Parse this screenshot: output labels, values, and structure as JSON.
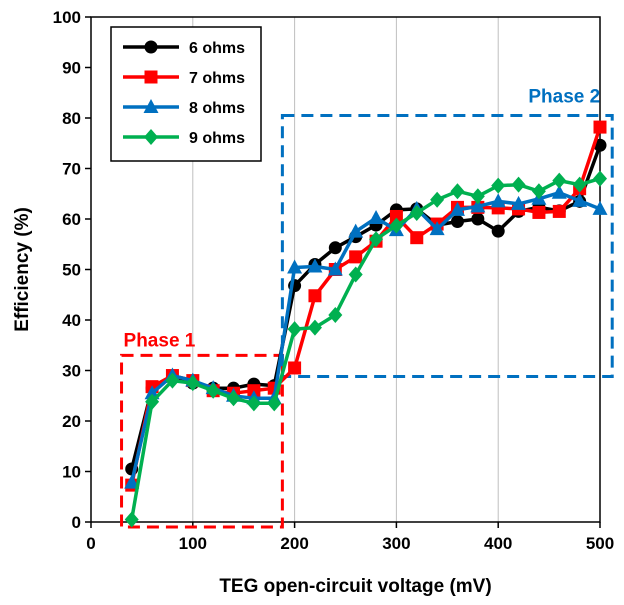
{
  "chart_data": {
    "type": "line",
    "xlabel": "TEG open-circuit voltage (mV)",
    "ylabel": "Efficiency (%)",
    "xlim": [
      0,
      500
    ],
    "ylim": [
      0,
      100
    ],
    "xticks": [
      0,
      100,
      200,
      300,
      400,
      500
    ],
    "yticks": [
      0,
      10,
      20,
      30,
      40,
      50,
      60,
      70,
      80,
      90,
      100
    ],
    "grid": "vertical",
    "legend_position": "top-left",
    "series": [
      {
        "name": "6 ohms",
        "color": "#000000",
        "marker": "circle",
        "x": [
          40,
          60,
          80,
          100,
          120,
          140,
          160,
          180,
          200,
          220,
          240,
          260,
          280,
          300,
          320,
          340,
          360,
          380,
          400,
          420,
          440,
          460,
          480,
          500
        ],
        "y": [
          10.5,
          26.5,
          28.5,
          27.5,
          26.5,
          26.5,
          27.3,
          27.0,
          46.8,
          51.0,
          54.3,
          56.5,
          58.8,
          61.8,
          62.0,
          58.8,
          59.5,
          60.0,
          57.6,
          61.5,
          62.3,
          61.6,
          63.5,
          74.6
        ]
      },
      {
        "name": "7 ohms",
        "color": "#ff0000",
        "marker": "square",
        "x": [
          40,
          60,
          80,
          100,
          120,
          140,
          160,
          180,
          200,
          220,
          240,
          260,
          280,
          300,
          320,
          340,
          360,
          380,
          400,
          420,
          440,
          460,
          480,
          500
        ],
        "y": [
          7.3,
          26.8,
          29.0,
          28.0,
          26.0,
          25.5,
          26.0,
          26.5,
          30.5,
          44.8,
          50.0,
          52.5,
          55.6,
          60.5,
          56.3,
          59.0,
          62.3,
          62.3,
          62.2,
          62.0,
          61.3,
          61.5,
          66.0,
          78.2
        ]
      },
      {
        "name": "8 ohms",
        "color": "#0070c0",
        "marker": "triangle",
        "x": [
          40,
          60,
          80,
          100,
          120,
          140,
          160,
          180,
          200,
          220,
          240,
          260,
          280,
          300,
          320,
          340,
          360,
          380,
          400,
          420,
          440,
          460,
          480,
          500
        ],
        "y": [
          7.8,
          25.5,
          29.0,
          28.0,
          26.5,
          25.0,
          24.5,
          24.5,
          50.4,
          50.6,
          50.0,
          57.5,
          60.2,
          57.8,
          62.0,
          58.0,
          61.8,
          62.5,
          63.5,
          63.0,
          64.0,
          65.2,
          63.6,
          62.0
        ]
      },
      {
        "name": "9 ohms",
        "color": "#00b050",
        "marker": "diamond",
        "x": [
          40,
          60,
          80,
          100,
          120,
          140,
          160,
          180,
          200,
          220,
          240,
          260,
          280,
          300,
          320,
          340,
          360,
          380,
          400,
          420,
          440,
          460,
          480,
          500
        ],
        "y": [
          0.5,
          23.8,
          28.0,
          27.5,
          26.0,
          24.5,
          23.5,
          23.5,
          38.2,
          38.5,
          41.0,
          49.0,
          56.0,
          58.7,
          61.2,
          63.8,
          65.5,
          64.5,
          66.6,
          66.8,
          65.5,
          67.6,
          66.8,
          68.0
        ]
      }
    ],
    "annotations": [
      {
        "label": "Phase 1",
        "color": "#ff0000",
        "x_range": [
          30,
          188
        ],
        "y_range": [
          -1,
          33
        ]
      },
      {
        "label": "Phase 2",
        "color": "#0070c0",
        "x_range": [
          188,
          512
        ],
        "y_range": [
          28.8,
          80.5
        ]
      }
    ]
  }
}
